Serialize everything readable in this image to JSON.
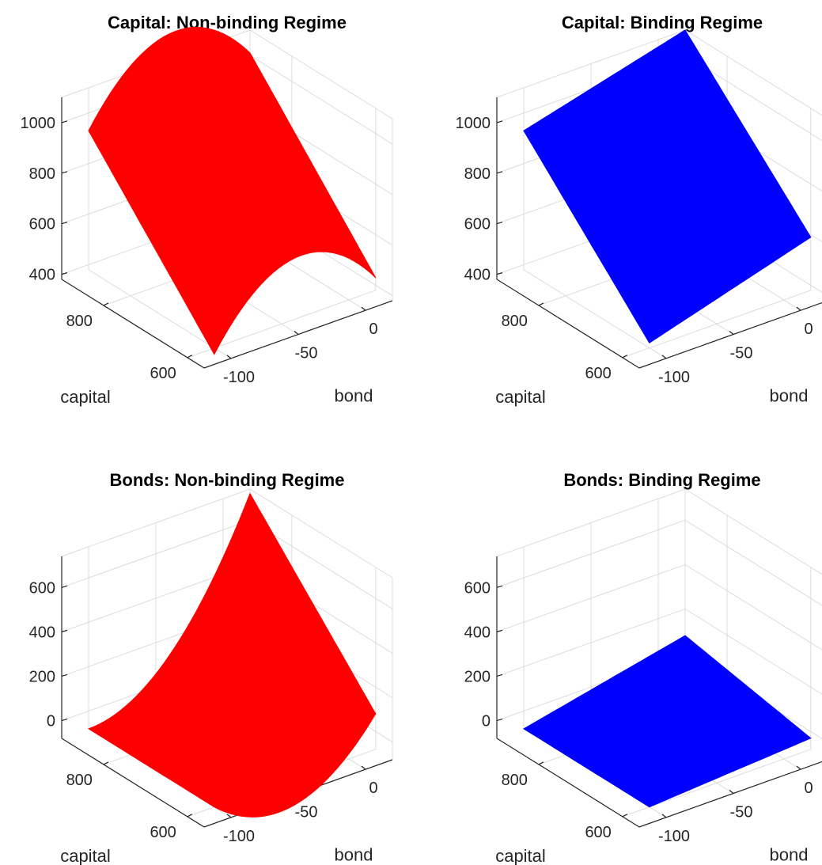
{
  "chart_data": [
    {
      "type": "surface",
      "title": "Capital: Non-binding Regime",
      "xlabel": "bond",
      "ylabel": "capital",
      "zlabel": "",
      "xticks": [
        -100,
        -50,
        0
      ],
      "yticks": [
        600,
        800
      ],
      "zticks": [
        400,
        600,
        800,
        1000
      ],
      "xlim": [
        -120,
        20
      ],
      "ylim": [
        560,
        900
      ],
      "zlim": [
        380,
        1100
      ],
      "color": "#ff0000",
      "corners": {
        "bond_min_capital_max": 930,
        "bond_max_capital_max": 1010,
        "bond_min_capital_min": 355,
        "bond_max_capital_min": 430
      }
    },
    {
      "type": "surface",
      "title": "Capital: Binding Regime",
      "xlabel": "bond",
      "ylabel": "capital",
      "zlabel": "",
      "xticks": [
        -100,
        -50,
        0
      ],
      "yticks": [
        600,
        800
      ],
      "zticks": [
        400,
        600,
        800,
        1000
      ],
      "xlim": [
        -120,
        20
      ],
      "ylim": [
        560,
        900
      ],
      "zlim": [
        380,
        1100
      ],
      "color": "#0000ff",
      "corners": {
        "bond_min_capital_max": 930,
        "bond_max_capital_max": 1100,
        "bond_min_capital_min": 400,
        "bond_max_capital_min": 590
      }
    },
    {
      "type": "surface",
      "title": "Bonds: Non-binding Regime",
      "xlabel": "bond",
      "ylabel": "capital",
      "zlabel": "",
      "xticks": [
        -100,
        -50,
        0
      ],
      "yticks": [
        600,
        800
      ],
      "zticks": [
        0,
        200,
        400,
        600
      ],
      "xlim": [
        -120,
        20
      ],
      "ylim": [
        560,
        900
      ],
      "zlim": [
        -80,
        740
      ],
      "color": "#ff0000",
      "corners": {
        "bond_min_capital_max": -80,
        "bond_max_capital_max": 720,
        "bond_min_capital_min": -80,
        "bond_max_capital_min": 80
      }
    },
    {
      "type": "surface",
      "title": "Bonds: Binding Regime",
      "xlabel": "bond",
      "ylabel": "capital",
      "zlabel": "",
      "xticks": [
        -100,
        -50,
        0
      ],
      "yticks": [
        600,
        800
      ],
      "zticks": [
        0,
        200,
        400,
        600
      ],
      "xlim": [
        -120,
        20
      ],
      "ylim": [
        560,
        900
      ],
      "zlim": [
        -80,
        740
      ],
      "color": "#0000ff",
      "corners": {
        "bond_min_capital_max": -80,
        "bond_max_capital_max": 80,
        "bond_min_capital_min": -80,
        "bond_max_capital_min": -30
      }
    }
  ]
}
